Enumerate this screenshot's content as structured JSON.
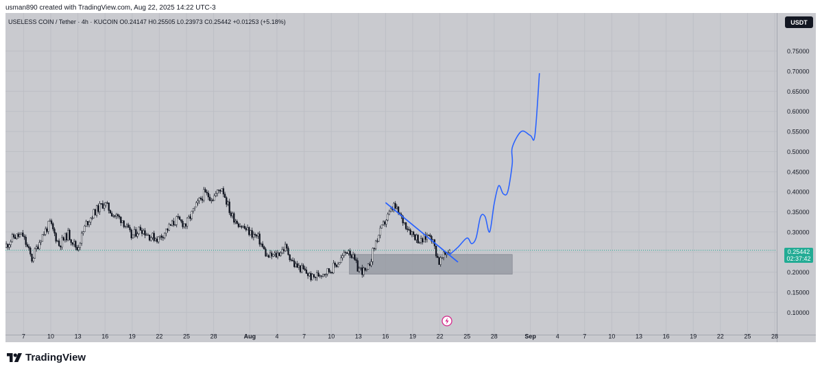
{
  "header": {
    "attribution": "usman890 created with TradingView.com, Aug 22, 2025 14:22 UTC-3"
  },
  "legend": {
    "symbol": "USELESS COIN / Tether · 4h · KUCOIN",
    "open": "O0.24147",
    "high": "H0.25505",
    "low": "L0.23973",
    "close": "C0.25442",
    "change": "+0.01253 (+5.18%)"
  },
  "currency_badge": "USDT",
  "last_price": {
    "value": "0.25442",
    "countdown": "02:37:42"
  },
  "branding": {
    "name": "TradingView"
  },
  "colors": {
    "up": "#ffffff",
    "down": "#131722",
    "projection": "#2962ff",
    "zone": "#9598a1",
    "price_badge": "#22ab94"
  },
  "chart_data": {
    "type": "candlestick",
    "interval": "4h",
    "y_axis": {
      "range": [
        0.07,
        0.78
      ],
      "ticks": [
        "0.10000",
        "0.15000",
        "0.20000",
        "0.25000",
        "0.30000",
        "0.35000",
        "0.40000",
        "0.45000",
        "0.50000",
        "0.55000",
        "0.60000",
        "0.65000",
        "0.70000",
        "0.75000"
      ]
    },
    "x_axis": {
      "range": [
        "2025-07-05",
        "2025-09-28"
      ],
      "ticks": [
        {
          "date": "2025-07-07",
          "label": "7"
        },
        {
          "date": "2025-07-10",
          "label": "10"
        },
        {
          "date": "2025-07-13",
          "label": "13"
        },
        {
          "date": "2025-07-16",
          "label": "16"
        },
        {
          "date": "2025-07-19",
          "label": "19"
        },
        {
          "date": "2025-07-22",
          "label": "22"
        },
        {
          "date": "2025-07-25",
          "label": "25"
        },
        {
          "date": "2025-07-28",
          "label": "28"
        },
        {
          "date": "2025-08-01",
          "label": "Aug"
        },
        {
          "date": "2025-08-04",
          "label": "4"
        },
        {
          "date": "2025-08-07",
          "label": "7"
        },
        {
          "date": "2025-08-10",
          "label": "10"
        },
        {
          "date": "2025-08-13",
          "label": "13"
        },
        {
          "date": "2025-08-16",
          "label": "16"
        },
        {
          "date": "2025-08-19",
          "label": "19"
        },
        {
          "date": "2025-08-22",
          "label": "22"
        },
        {
          "date": "2025-08-25",
          "label": "25"
        },
        {
          "date": "2025-08-28",
          "label": "28"
        },
        {
          "date": "2025-09-01",
          "label": "Sep"
        },
        {
          "date": "2025-09-04",
          "label": "4"
        },
        {
          "date": "2025-09-07",
          "label": "7"
        },
        {
          "date": "2025-09-10",
          "label": "10"
        },
        {
          "date": "2025-09-13",
          "label": "13"
        },
        {
          "date": "2025-09-16",
          "label": "16"
        },
        {
          "date": "2025-09-19",
          "label": "19"
        },
        {
          "date": "2025-09-22",
          "label": "22"
        },
        {
          "date": "2025-09-25",
          "label": "25"
        },
        {
          "date": "2025-09-28",
          "label": "28"
        }
      ]
    },
    "price_path": [
      [
        "2025-07-05",
        0.262
      ],
      [
        "2025-07-06",
        0.288
      ],
      [
        "2025-07-07",
        0.291
      ],
      [
        "2025-07-08",
        0.232
      ],
      [
        "2025-07-09",
        0.286
      ],
      [
        "2025-07-10",
        0.322
      ],
      [
        "2025-07-11",
        0.268
      ],
      [
        "2025-07-12",
        0.295
      ],
      [
        "2025-07-13",
        0.258
      ],
      [
        "2025-07-14",
        0.321
      ],
      [
        "2025-07-15",
        0.352
      ],
      [
        "2025-07-16",
        0.372
      ],
      [
        "2025-07-17",
        0.343
      ],
      [
        "2025-07-18",
        0.33
      ],
      [
        "2025-07-19",
        0.288
      ],
      [
        "2025-07-20",
        0.31
      ],
      [
        "2025-07-21",
        0.29
      ],
      [
        "2025-07-22",
        0.283
      ],
      [
        "2025-07-23",
        0.308
      ],
      [
        "2025-07-24",
        0.33
      ],
      [
        "2025-07-25",
        0.318
      ],
      [
        "2025-07-26",
        0.358
      ],
      [
        "2025-07-27",
        0.395
      ],
      [
        "2025-07-28",
        0.385
      ],
      [
        "2025-07-29",
        0.412
      ],
      [
        "2025-07-30",
        0.343
      ],
      [
        "2025-07-31",
        0.318
      ],
      [
        "2025-08-01",
        0.3
      ],
      [
        "2025-08-02",
        0.285
      ],
      [
        "2025-08-03",
        0.238
      ],
      [
        "2025-08-04",
        0.242
      ],
      [
        "2025-08-05",
        0.262
      ],
      [
        "2025-08-06",
        0.218
      ],
      [
        "2025-08-07",
        0.205
      ],
      [
        "2025-08-08",
        0.185
      ],
      [
        "2025-08-09",
        0.198
      ],
      [
        "2025-08-10",
        0.205
      ],
      [
        "2025-08-11",
        0.228
      ],
      [
        "2025-08-12",
        0.258
      ],
      [
        "2025-08-13",
        0.21
      ],
      [
        "2025-08-14",
        0.198
      ],
      [
        "2025-08-15",
        0.275
      ],
      [
        "2025-08-16",
        0.325
      ],
      [
        "2025-08-17",
        0.365
      ],
      [
        "2025-08-18",
        0.328
      ],
      [
        "2025-08-19",
        0.298
      ],
      [
        "2025-08-20",
        0.275
      ],
      [
        "2025-08-21",
        0.298
      ],
      [
        "2025-08-22",
        0.225
      ],
      [
        "2025-08-23",
        0.254
      ]
    ],
    "last_close": 0.25442,
    "annotations": {
      "zone": {
        "x_start": "2025-08-12",
        "x_end": "2025-08-30",
        "y_low": 0.195,
        "y_high": 0.244
      },
      "trendline": {
        "start": [
          "2025-08-16",
          0.373
        ],
        "end": [
          "2025-08-24",
          0.225
        ]
      },
      "projection": [
        [
          "2025-08-23",
          0.242
        ],
        [
          "2025-08-24",
          0.262
        ],
        [
          "2025-08-25",
          0.285
        ],
        [
          "2025-08-25.5",
          0.271
        ],
        [
          "2025-08-26",
          0.285
        ],
        [
          "2025-08-26.5",
          0.338
        ],
        [
          "2025-08-27",
          0.338
        ],
        [
          "2025-08-27.5",
          0.3
        ],
        [
          "2025-08-28",
          0.37
        ],
        [
          "2025-08-28.5",
          0.415
        ],
        [
          "2025-08-29",
          0.395
        ],
        [
          "2025-08-29.5",
          0.4
        ],
        [
          "2025-08-30",
          0.47
        ],
        [
          "2025-08-30",
          0.51
        ],
        [
          "2025-08-31",
          0.55
        ],
        [
          "2025-09-01",
          0.54
        ],
        [
          "2025-09-01.5",
          0.54
        ],
        [
          "2025-09-02",
          0.695
        ]
      ]
    }
  }
}
